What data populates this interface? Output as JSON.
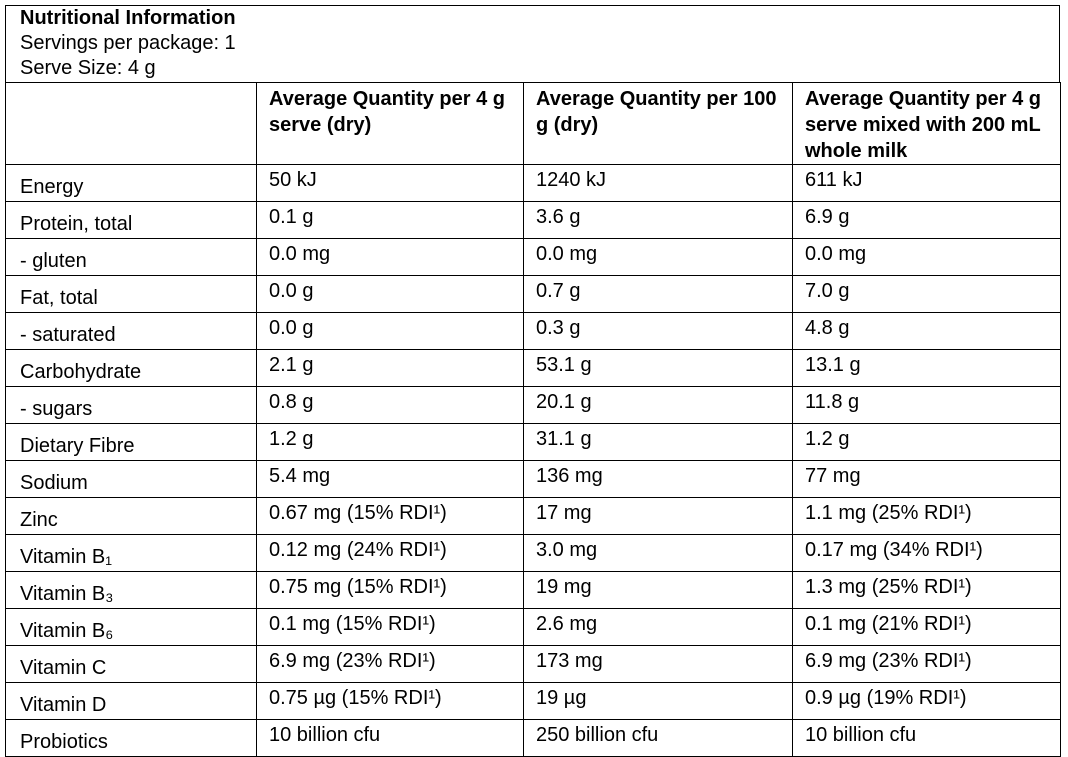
{
  "header": {
    "title": "Nutritional Information",
    "lines": [
      "Servings per package: 1",
      "Serve Size: 4 g"
    ]
  },
  "table": {
    "columns": [
      "Average Quantity per 4 g serve (dry)",
      "Average Quantity per 100 g (dry)",
      "Average Quantity per 4 g serve mixed with 200 mL whole milk"
    ],
    "rows": [
      [
        "Energy",
        "50 kJ",
        "1240 kJ",
        "611 kJ"
      ],
      [
        "Protein, total",
        "0.1 g",
        "3.6 g",
        "6.9 g"
      ],
      [
        "- gluten",
        "0.0 mg",
        "0.0 mg",
        "0.0 mg"
      ],
      [
        "Fat, total",
        "0.0 g",
        "0.7 g",
        "7.0 g"
      ],
      [
        "- saturated",
        "0.0 g",
        "0.3 g",
        "4.8 g"
      ],
      [
        "Carbohydrate",
        "2.1 g",
        "53.1 g",
        "13.1 g"
      ],
      [
        "- sugars",
        "0.8 g",
        "20.1 g",
        "11.8 g"
      ],
      [
        "Dietary Fibre",
        "1.2 g",
        "31.1 g",
        "1.2 g"
      ],
      [
        "Sodium",
        "5.4 mg",
        "136 mg",
        "77 mg"
      ],
      [
        "Zinc",
        "0.67 mg (15% RDI¹)",
        "17 mg",
        "1.1 mg (25% RDI¹)"
      ],
      [
        "Vitamin B₁",
        "0.12 mg (24% RDI¹)",
        "3.0 mg",
        "0.17 mg (34% RDI¹)"
      ],
      [
        "Vitamin B₃",
        "0.75 mg (15% RDI¹)",
        "19 mg",
        "1.3 mg (25% RDI¹)"
      ],
      [
        "Vitamin B₆",
        "0.1 mg (15% RDI¹)",
        "2.6 mg",
        "0.1 mg (21% RDI¹)"
      ],
      [
        "Vitamin C",
        "6.9 mg (23% RDI¹)",
        "173 mg",
        "6.9 mg (23% RDI¹)"
      ],
      [
        "Vitamin D",
        "0.75 µg (15% RDI¹)",
        "19 µg",
        "0.9 µg (19% RDI¹)"
      ],
      [
        "Probiotics",
        "10 billion cfu",
        "250 billion cfu",
        "10 billion cfu"
      ]
    ]
  }
}
